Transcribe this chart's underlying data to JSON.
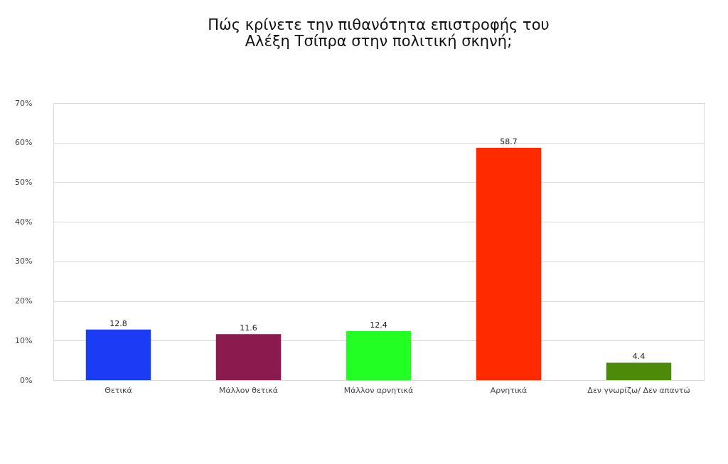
{
  "chart_data": {
    "type": "bar",
    "title": "Πώς κρίνετε την πιθανότητα επιστροφής του\nΑλέξη Τσίπρα στην πολιτική σκηνή;",
    "categories": [
      "Θετικά",
      "Μάλλον θετικά",
      "Μάλλον αρνητικά",
      "Αρνητικά",
      "Δεν γνωρίζω/ Δεν απαντώ"
    ],
    "values": [
      12.8,
      11.6,
      12.4,
      58.7,
      4.4
    ],
    "colors": [
      "#1a3cf5",
      "#8b1a4e",
      "#22ff22",
      "#ff2a00",
      "#4e8a0a"
    ],
    "ylim": [
      0,
      70
    ],
    "yticks": [
      {
        "value": 0,
        "label": "0%"
      },
      {
        "value": 10,
        "label": "10%"
      },
      {
        "value": 20,
        "label": "20%"
      },
      {
        "value": 30,
        "label": "30%"
      },
      {
        "value": 40,
        "label": "40%"
      },
      {
        "value": 50,
        "label": "50%"
      },
      {
        "value": 60,
        "label": "60%"
      },
      {
        "value": 70,
        "label": "70%"
      }
    ],
    "grid": "y",
    "data_labels": true
  }
}
